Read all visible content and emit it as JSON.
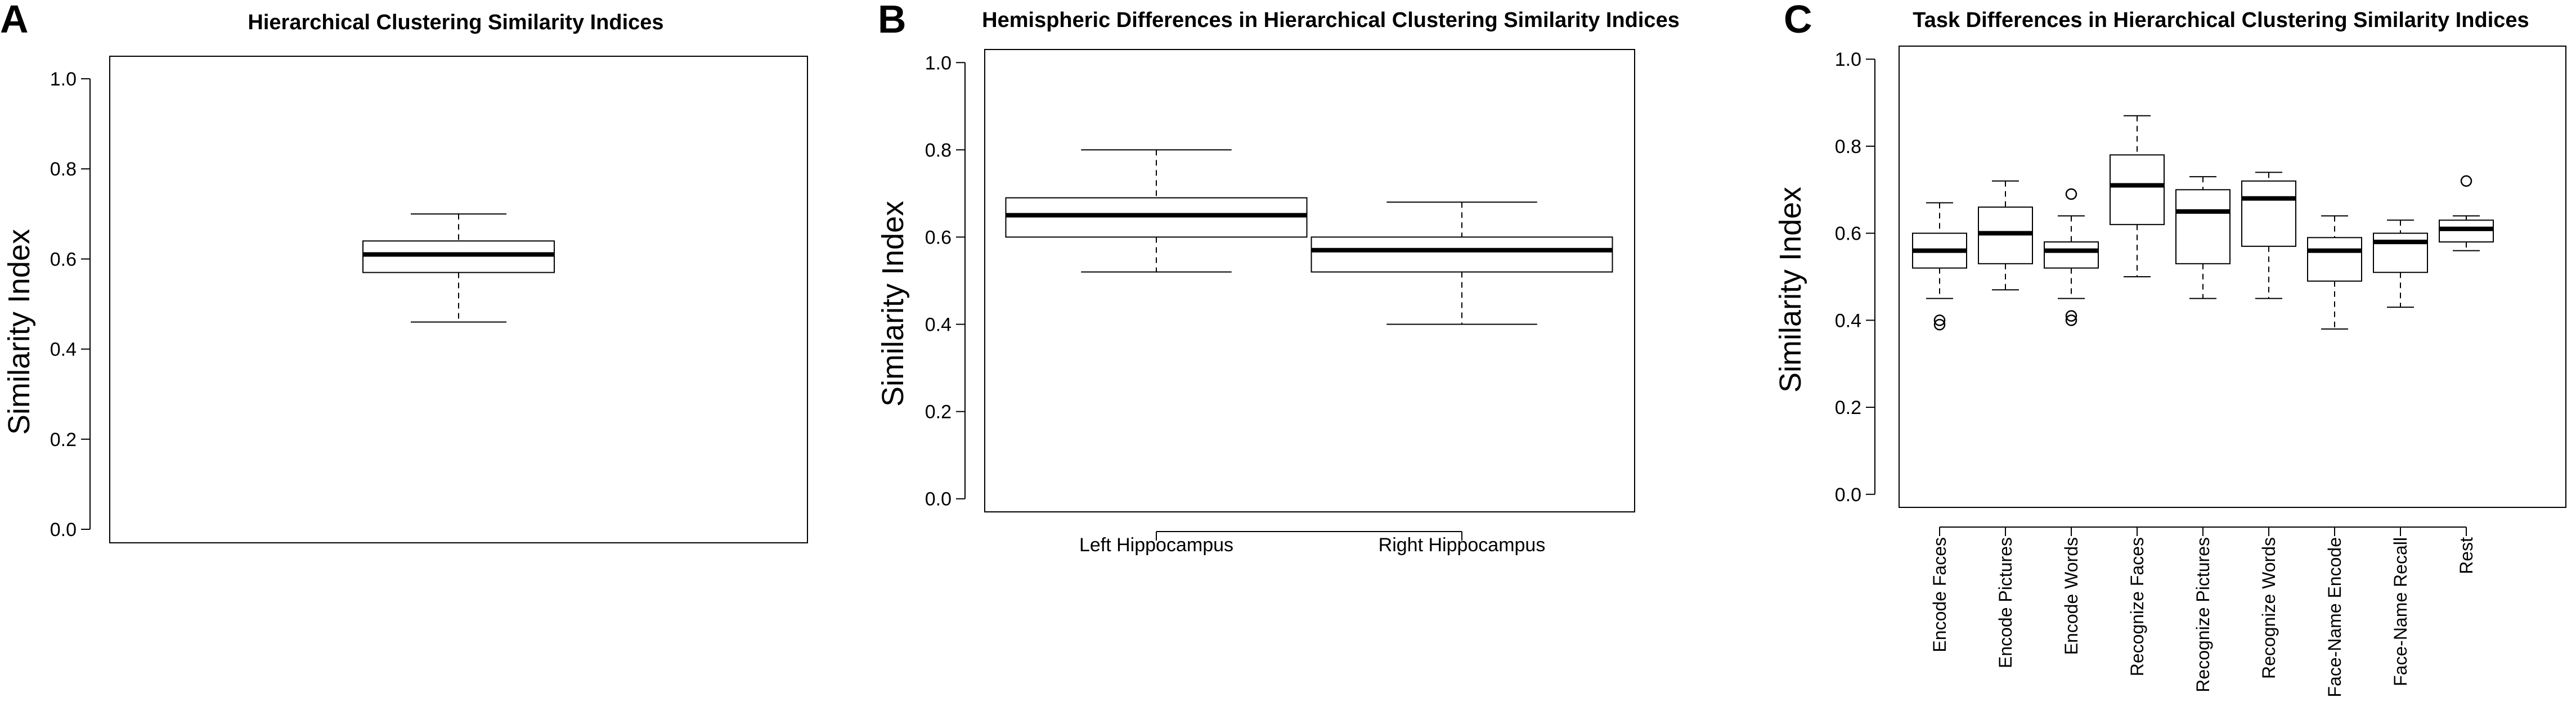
{
  "chart_data": [
    {
      "panel": "A",
      "title": "Hierarchical Clustering Similarity Indices",
      "type": "box",
      "xlabel": "",
      "ylabel": "Similarity Index",
      "ylim": [
        -0.03,
        1.05
      ],
      "yticks": [
        "0.0",
        "0.2",
        "0.4",
        "0.6",
        "0.8",
        "1.0"
      ],
      "boxes": [
        {
          "label": "",
          "min": 0.46,
          "q1": 0.57,
          "median": 0.61,
          "q3": 0.64,
          "max": 0.7,
          "outliers": []
        }
      ]
    },
    {
      "panel": "B",
      "title": "Hemispheric Differences in Hierarchical Clustering Similarity Indices",
      "type": "box",
      "xlabel": "",
      "ylabel": "Similarity Index",
      "ylim": [
        -0.03,
        1.03
      ],
      "yticks": [
        "0.0",
        "0.2",
        "0.4",
        "0.6",
        "0.8",
        "1.0"
      ],
      "boxes": [
        {
          "label": "Left Hippocampus",
          "min": 0.52,
          "q1": 0.6,
          "median": 0.65,
          "q3": 0.69,
          "max": 0.8,
          "outliers": []
        },
        {
          "label": "Right Hippocampus",
          "min": 0.4,
          "q1": 0.52,
          "median": 0.57,
          "q3": 0.6,
          "max": 0.68,
          "outliers": []
        }
      ]
    },
    {
      "panel": "C",
      "title": "Task Differences in Hierarchical Clustering Similarity Indices",
      "type": "box",
      "xlabel": "",
      "ylabel": "Similarity Index",
      "ylim": [
        -0.03,
        1.03
      ],
      "yticks": [
        "0.0",
        "0.2",
        "0.4",
        "0.6",
        "0.8",
        "1.0"
      ],
      "boxes": [
        {
          "label": "Encode Faces",
          "min": 0.45,
          "q1": 0.52,
          "median": 0.56,
          "q3": 0.6,
          "max": 0.67,
          "outliers": [
            0.39,
            0.4
          ]
        },
        {
          "label": "Encode Pictures",
          "min": 0.47,
          "q1": 0.53,
          "median": 0.6,
          "q3": 0.66,
          "max": 0.72,
          "outliers": []
        },
        {
          "label": "Encode Words",
          "min": 0.45,
          "q1": 0.52,
          "median": 0.56,
          "q3": 0.58,
          "max": 0.64,
          "outliers": [
            0.69,
            0.41,
            0.4
          ]
        },
        {
          "label": "Recognize Faces",
          "min": 0.5,
          "q1": 0.62,
          "median": 0.71,
          "q3": 0.78,
          "max": 0.87,
          "outliers": []
        },
        {
          "label": "Recognize Pictures",
          "min": 0.45,
          "q1": 0.53,
          "median": 0.65,
          "q3": 0.7,
          "max": 0.73,
          "outliers": []
        },
        {
          "label": "Recognize Words",
          "min": 0.45,
          "q1": 0.57,
          "median": 0.68,
          "q3": 0.72,
          "max": 0.74,
          "outliers": []
        },
        {
          "label": "Face-Name Encode",
          "min": 0.38,
          "q1": 0.49,
          "median": 0.56,
          "q3": 0.59,
          "max": 0.64,
          "outliers": []
        },
        {
          "label": "Face-Name Recall",
          "min": 0.43,
          "q1": 0.51,
          "median": 0.58,
          "q3": 0.6,
          "max": 0.63,
          "outliers": []
        },
        {
          "label": "Rest",
          "min": 0.56,
          "q1": 0.58,
          "median": 0.61,
          "q3": 0.63,
          "max": 0.64,
          "outliers": [
            0.72
          ]
        }
      ]
    }
  ]
}
